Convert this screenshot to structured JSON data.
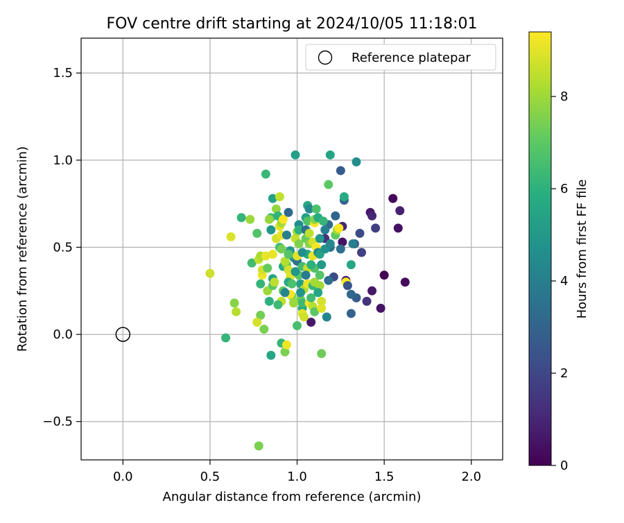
{
  "chart_data": {
    "type": "scatter",
    "title": "FOV centre drift starting at 2024/10/05 11:18:01",
    "xlabel": "Angular distance from reference (arcmin)",
    "ylabel": "Rotation from reference (arcmin)",
    "xlim": [
      -0.24,
      2.18
    ],
    "ylim": [
      -0.72,
      1.7
    ],
    "xticks": [
      0.0,
      0.5,
      1.0,
      1.5,
      2.0
    ],
    "xtick_labels": [
      "0.0",
      "0.5",
      "1.0",
      "1.5",
      "2.0"
    ],
    "yticks": [
      -0.5,
      0.0,
      0.5,
      1.0,
      1.5
    ],
    "ytick_labels": [
      "−0.5",
      "0.0",
      "0.5",
      "1.0",
      "1.5"
    ],
    "grid": true,
    "legend": {
      "position": "top-right",
      "entries": [
        "Reference platepar"
      ]
    },
    "reference_point": {
      "label": "Reference platepar",
      "x": 0.0,
      "y": 0.0
    },
    "colorbar": {
      "label": "Hours from first FF file",
      "min": 0,
      "max": 9.4,
      "ticks": [
        0,
        2,
        4,
        6,
        8
      ],
      "tick_labels": [
        "0",
        "2",
        "4",
        "6",
        "8"
      ],
      "colormap": "viridis"
    },
    "points": [
      [
        1.55,
        0.78,
        0.2
      ],
      [
        1.59,
        0.71,
        0.9
      ],
      [
        1.58,
        0.61,
        0.4
      ],
      [
        1.62,
        0.3,
        0.3
      ],
      [
        1.5,
        0.34,
        0.1
      ],
      [
        1.48,
        0.15,
        0.5
      ],
      [
        1.43,
        0.25,
        0.6
      ],
      [
        1.4,
        0.19,
        1.4
      ],
      [
        1.42,
        0.7,
        0.6
      ],
      [
        1.43,
        0.68,
        1.0
      ],
      [
        1.45,
        0.61,
        1.8
      ],
      [
        1.36,
        0.58,
        2.2
      ],
      [
        1.37,
        0.47,
        1.8
      ],
      [
        1.33,
        0.52,
        2.6
      ],
      [
        1.34,
        0.21,
        2.8
      ],
      [
        1.31,
        0.12,
        3.0
      ],
      [
        1.31,
        0.23,
        3.2
      ],
      [
        1.28,
        0.31,
        0.8
      ],
      [
        1.26,
        0.53,
        0.5
      ],
      [
        1.26,
        0.62,
        1.0
      ],
      [
        1.25,
        0.94,
        2.7
      ],
      [
        1.27,
        0.77,
        3.0
      ],
      [
        1.27,
        0.79,
        5.8
      ],
      [
        1.19,
        1.03,
        5.5
      ],
      [
        1.34,
        0.99,
        4.6
      ],
      [
        0.99,
        1.03,
        5.3
      ],
      [
        0.82,
        0.92,
        6.3
      ],
      [
        1.18,
        0.86,
        7.0
      ],
      [
        1.22,
        0.68,
        3.1
      ],
      [
        1.18,
        0.63,
        3.3
      ],
      [
        1.16,
        0.55,
        1.3
      ],
      [
        1.19,
        0.5,
        3.6
      ],
      [
        1.21,
        0.33,
        2.2
      ],
      [
        1.18,
        0.31,
        3.4
      ],
      [
        1.17,
        0.1,
        4.3
      ],
      [
        1.08,
        0.07,
        0.6
      ],
      [
        1.0,
        0.05,
        6.6
      ],
      [
        0.79,
        0.11,
        7.4
      ],
      [
        0.81,
        0.03,
        7.5
      ],
      [
        0.77,
        0.07,
        8.8
      ],
      [
        0.91,
        -0.05,
        6.2
      ],
      [
        0.93,
        -0.1,
        7.5
      ],
      [
        0.94,
        -0.06,
        9.2
      ],
      [
        0.85,
        -0.12,
        5.6
      ],
      [
        0.59,
        -0.02,
        6.2
      ],
      [
        1.14,
        -0.11,
        7.3
      ],
      [
        0.78,
        -0.64,
        7.5
      ],
      [
        0.5,
        0.35,
        8.7
      ],
      [
        0.62,
        0.56,
        8.9
      ],
      [
        0.64,
        0.18,
        7.7
      ],
      [
        0.65,
        0.13,
        8.4
      ],
      [
        0.74,
        0.41,
        6.5
      ],
      [
        0.68,
        0.67,
        6.2
      ],
      [
        0.73,
        0.66,
        8.0
      ],
      [
        0.77,
        0.58,
        6.8
      ],
      [
        0.78,
        0.43,
        8.6
      ],
      [
        0.79,
        0.29,
        6.2
      ],
      [
        0.8,
        0.34,
        9.2
      ],
      [
        0.8,
        0.37,
        8.8
      ],
      [
        0.79,
        0.45,
        8.2
      ],
      [
        0.82,
        0.45,
        9.1
      ],
      [
        0.83,
        0.25,
        8.0
      ],
      [
        0.83,
        0.38,
        7.2
      ],
      [
        0.84,
        0.19,
        6.0
      ],
      [
        0.86,
        0.28,
        7.0
      ],
      [
        0.86,
        0.32,
        5.4
      ],
      [
        0.87,
        0.3,
        8.5
      ],
      [
        0.86,
        0.46,
        9.1
      ],
      [
        0.85,
        0.6,
        4.9
      ],
      [
        0.85,
        0.67,
        6.4
      ],
      [
        0.84,
        0.66,
        7.9
      ],
      [
        0.86,
        0.78,
        5.4
      ],
      [
        0.88,
        0.72,
        7.9
      ],
      [
        0.9,
        0.79,
        8.6
      ],
      [
        0.89,
        0.68,
        6.1
      ],
      [
        0.88,
        0.55,
        8.8
      ],
      [
        0.9,
        0.62,
        9.0
      ],
      [
        0.91,
        0.64,
        8.1
      ],
      [
        0.92,
        0.66,
        9.3
      ],
      [
        0.91,
        0.57,
        9.1
      ],
      [
        0.9,
        0.5,
        6.4
      ],
      [
        0.91,
        0.49,
        7.4
      ],
      [
        0.92,
        0.39,
        5.8
      ],
      [
        0.92,
        0.25,
        7.2
      ],
      [
        0.91,
        0.19,
        8.5
      ],
      [
        0.89,
        0.17,
        6.4
      ],
      [
        0.95,
        0.7,
        3.2
      ],
      [
        0.94,
        0.57,
        4.1
      ],
      [
        0.96,
        0.48,
        5.1
      ],
      [
        0.94,
        0.4,
        7.4
      ],
      [
        0.95,
        0.37,
        8.8
      ],
      [
        0.96,
        0.33,
        9.0
      ],
      [
        0.95,
        0.3,
        5.7
      ],
      [
        0.97,
        0.22,
        7.5
      ],
      [
        0.96,
        0.23,
        9.3
      ],
      [
        0.93,
        0.42,
        8.4
      ],
      [
        0.98,
        0.44,
        5.2
      ],
      [
        0.99,
        0.55,
        8.6
      ],
      [
        1.0,
        0.59,
        8.2
      ],
      [
        1.01,
        0.63,
        4.6
      ],
      [
        1.01,
        0.6,
        6.0
      ],
      [
        1.0,
        0.42,
        3.6
      ],
      [
        1.0,
        0.45,
        9.0
      ],
      [
        1.01,
        0.34,
        7.0
      ],
      [
        1.02,
        0.29,
        5.3
      ],
      [
        1.02,
        0.2,
        7.3
      ],
      [
        1.03,
        0.15,
        5.6
      ],
      [
        1.03,
        0.12,
        9.0
      ],
      [
        1.04,
        0.1,
        8.7
      ],
      [
        1.03,
        0.18,
        6.4
      ],
      [
        1.04,
        0.26,
        8.3
      ],
      [
        1.03,
        0.39,
        6.5
      ],
      [
        1.05,
        0.55,
        7.2
      ],
      [
        1.05,
        0.6,
        3.4
      ],
      [
        1.05,
        0.67,
        5.3
      ],
      [
        1.06,
        0.74,
        5.7
      ],
      [
        1.07,
        0.72,
        4.4
      ],
      [
        1.06,
        0.65,
        6.8
      ],
      [
        1.07,
        0.52,
        7.7
      ],
      [
        1.06,
        0.46,
        5.8
      ],
      [
        1.06,
        0.38,
        8.6
      ],
      [
        1.06,
        0.29,
        9.1
      ],
      [
        1.07,
        0.18,
        9.3
      ],
      [
        1.08,
        0.21,
        6.5
      ],
      [
        1.09,
        0.16,
        8.4
      ],
      [
        1.1,
        0.13,
        7.0
      ],
      [
        1.09,
        0.28,
        6.2
      ],
      [
        1.1,
        0.3,
        8.1
      ],
      [
        1.1,
        0.38,
        6.8
      ],
      [
        1.09,
        0.45,
        9.1
      ],
      [
        1.09,
        0.53,
        8.8
      ],
      [
        1.11,
        0.5,
        9.3
      ],
      [
        1.1,
        0.64,
        9.3
      ],
      [
        1.1,
        0.66,
        7.7
      ],
      [
        1.11,
        0.72,
        6.7
      ],
      [
        1.12,
        0.67,
        5.8
      ],
      [
        1.13,
        0.55,
        5.0
      ],
      [
        1.12,
        0.47,
        4.2
      ],
      [
        1.13,
        0.46,
        5.5
      ],
      [
        1.14,
        0.4,
        5.1
      ],
      [
        1.13,
        0.34,
        6.9
      ],
      [
        1.13,
        0.28,
        8.1
      ],
      [
        1.14,
        0.19,
        8.8
      ],
      [
        1.14,
        0.15,
        9.0
      ],
      [
        1.15,
        0.65,
        6.2
      ],
      [
        1.16,
        0.6,
        4.0
      ],
      [
        1.16,
        0.49,
        4.8
      ],
      [
        1.19,
        0.52,
        4.4
      ],
      [
        1.22,
        0.57,
        7.1
      ],
      [
        1.23,
        0.6,
        8.2
      ],
      [
        1.24,
        0.61,
        9.3
      ],
      [
        1.25,
        0.49,
        3.4
      ],
      [
        1.28,
        0.3,
        9.4
      ],
      [
        1.29,
        0.28,
        2.5
      ],
      [
        1.31,
        0.4,
        5.6
      ],
      [
        1.32,
        0.52,
        4.1
      ],
      [
        0.99,
        0.36,
        5.0
      ],
      [
        0.97,
        0.29,
        6.7
      ],
      [
        1.01,
        0.52,
        7.6
      ],
      [
        1.03,
        0.47,
        4.7
      ],
      [
        0.93,
        0.24,
        4.3
      ],
      [
        1.05,
        0.34,
        3.9
      ],
      [
        1.08,
        0.4,
        6.0
      ],
      [
        0.98,
        0.18,
        8.0
      ],
      [
        1.12,
        0.24,
        5.6
      ],
      [
        1.02,
        0.24,
        4.9
      ],
      [
        0.95,
        0.46,
        6.9
      ],
      [
        1.07,
        0.58,
        8.5
      ]
    ]
  }
}
